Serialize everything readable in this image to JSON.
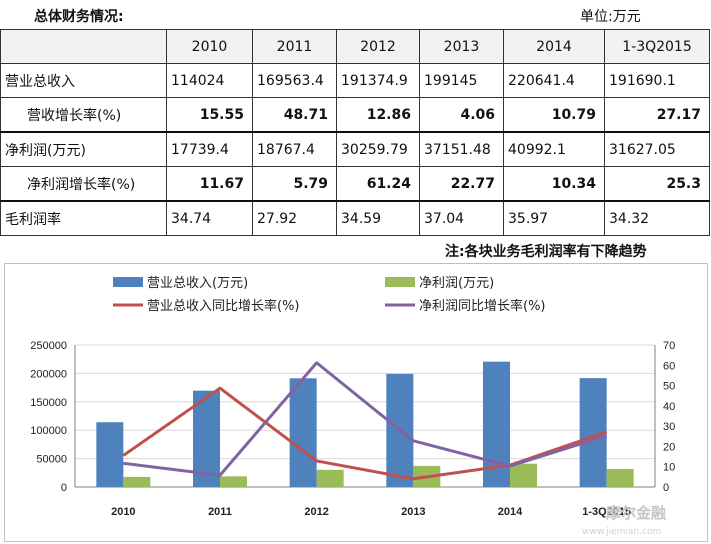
{
  "header": {
    "title": "总体财务情况:",
    "unit": "单位:万元"
  },
  "table": {
    "columns": [
      "",
      "2010",
      "2011",
      "2012",
      "2013",
      "2014",
      "1-3Q2015"
    ],
    "rows": [
      {
        "label": "营业总收入",
        "values": [
          "114024",
          "169563.4",
          "191374.9",
          "199145",
          "220641.4",
          "191690.1"
        ]
      },
      {
        "label": "营收增长率(%)",
        "values": [
          "15.55",
          "48.71",
          "12.86",
          "4.06",
          "10.79",
          "27.17"
        ]
      },
      {
        "label": "净利润(万元)",
        "values": [
          "17739.4",
          "18767.4",
          "30259.79",
          "37151.48",
          "40992.1",
          "31627.05"
        ]
      },
      {
        "label": "净利润增长率(%)",
        "values": [
          "11.67",
          "5.79",
          "61.24",
          "22.77",
          "10.34",
          "25.3"
        ]
      },
      {
        "label": "毛利润率",
        "values": [
          "34.74",
          "27.92",
          "34.59",
          "37.04",
          "35.97",
          "34.32"
        ]
      }
    ]
  },
  "note": "注:各块业务毛利润率有下降趋势",
  "watermark": {
    "text": "摩尔金融",
    "url": "www.jiemian.com"
  },
  "chart_data": {
    "type": "bar",
    "title": "",
    "categories": [
      "2010",
      "2011",
      "2012",
      "2013",
      "2014",
      "1-3Q2015"
    ],
    "series": [
      {
        "name": "营业总收入(万元)",
        "type": "bar",
        "axis": "left",
        "color": "#4f81bd",
        "values": [
          114024,
          169563.4,
          191374.9,
          199145,
          220641.4,
          191690.1
        ]
      },
      {
        "name": "净利润(万元)",
        "type": "bar",
        "axis": "left",
        "color": "#9bbb59",
        "values": [
          17739.4,
          18767.4,
          30259.79,
          37151.48,
          40992.1,
          31627.05
        ]
      },
      {
        "name": "营业总收入同比增长率(%)",
        "type": "line",
        "axis": "right",
        "color": "#c0504d",
        "values": [
          15.55,
          48.71,
          12.86,
          4.06,
          10.79,
          27.17
        ]
      },
      {
        "name": "净利润同比增长率(%)",
        "type": "line",
        "axis": "right",
        "color": "#8064a2",
        "values": [
          11.67,
          5.79,
          61.24,
          22.77,
          10.34,
          25.3
        ]
      }
    ],
    "y_left": {
      "min": 0,
      "max": 250000,
      "ticks": [
        "0",
        "50000",
        "100000",
        "150000",
        "200000",
        "250000"
      ]
    },
    "y_right": {
      "min": 0,
      "max": 70,
      "ticks": [
        "0",
        "10",
        "20",
        "30",
        "40",
        "50",
        "60",
        "70"
      ]
    },
    "legend": "top",
    "grid": true
  }
}
